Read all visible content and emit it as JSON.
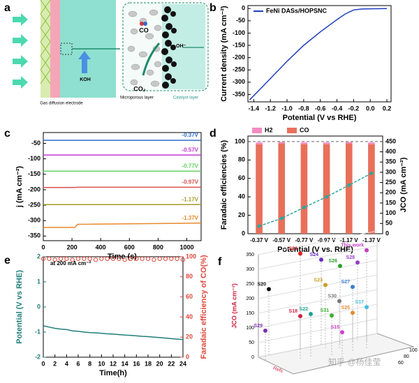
{
  "diagram": {
    "panel": "a",
    "koh": "KOH",
    "gde": "Gas diffusion electrode",
    "mpl": "Microporous layer",
    "cl": "Catalyst layer",
    "co": "CO",
    "co2": "CO₂",
    "oh": "OH⁻"
  },
  "chart_data": [
    {
      "panel": "b",
      "type": "line",
      "xlabel": "Potential (V vs RHE)",
      "ylabel": "Current density (mA cm⁻²)",
      "x": [
        -1.45,
        -1.4,
        -1.2,
        -1.0,
        -0.8,
        -0.6,
        -0.4,
        -0.3,
        -0.2,
        -0.1,
        0,
        0.2
      ],
      "series": [
        {
          "name": "FeNi DASs/HOPSNC",
          "color": "#1f3fbf",
          "values": [
            -372,
            -355,
            -285,
            -215,
            -150,
            -95,
            -45,
            -22,
            -6,
            -2,
            -1,
            0
          ]
        }
      ],
      "xlim": [
        -1.47,
        0.25
      ],
      "xticks": [
        -1.4,
        -1.2,
        {
          "value": -1,
          "label": "-1.0"
        },
        -0.8,
        -0.6,
        -0.4,
        -0.2,
        {
          "value": 0,
          "label": "0.0"
        },
        0.2
      ],
      "ylim": [
        -380,
        12
      ],
      "yticks": [
        -350,
        -300,
        -250,
        -200,
        -150,
        -100,
        -50,
        0
      ],
      "legend": "upper-left"
    },
    {
      "panel": "c",
      "type": "line",
      "xlabel": "Time (s)",
      "ylabel": "j (mA cm⁻²)",
      "x": [
        0,
        220,
        240,
        1100
      ],
      "series": [
        {
          "name": "-0.37V",
          "color": "#2e6fc9",
          "values": [
            -40,
            -40,
            -40,
            -40
          ]
        },
        {
          "name": "-0.57V",
          "color": "#c23bd4",
          "values": [
            -88,
            -88,
            -88,
            -88
          ]
        },
        {
          "name": "-0.77V",
          "color": "#5fd35f",
          "values": [
            -140,
            -140,
            -140,
            -140
          ]
        },
        {
          "name": "-0.97V",
          "color": "#d9534f",
          "values": [
            -193,
            -193,
            -192,
            -192
          ]
        },
        {
          "name": "-1.17V",
          "color": "#a59a2a",
          "values": [
            -248,
            -248,
            -248,
            -248
          ]
        },
        {
          "name": "-1.37V",
          "color": "#e8892c",
          "values": [
            -322,
            -322,
            -312,
            -308
          ]
        }
      ],
      "xlim": [
        0,
        1100
      ],
      "xticks": [
        0,
        200,
        400,
        600,
        800,
        1000
      ],
      "ylim": [
        -365,
        -15
      ],
      "yticks": [
        -50,
        -100,
        -150,
        -200,
        -250,
        -300,
        -350
      ],
      "legend": "line-end"
    },
    {
      "panel": "d",
      "type": "bar",
      "xlabel": "Potential (V vs. RHE)",
      "ylabel": "Faradaic efficiencies (%)",
      "y2label": "JCO (mA cm⁻²)",
      "categories": [
        "-0.37 V",
        "-0.57 V",
        "-0.77 V",
        "-0.97 V",
        "-1.17 V",
        "-1.37 V"
      ],
      "series": [
        {
          "name": "H2",
          "color": "#f28cc1",
          "values": [
            2,
            1.5,
            2,
            2,
            1.5,
            2
          ]
        },
        {
          "name": "CO",
          "color": "#e8705a",
          "values": [
            97,
            98,
            97,
            97,
            98,
            97
          ]
        },
        {
          "type": "line",
          "axis": "y2",
          "color": "#2aa8a0",
          "values": [
            37,
            75,
            128,
            180,
            237,
            295
          ]
        }
      ],
      "stacked": true,
      "reference_line": 100,
      "ylim": [
        0,
        106
      ],
      "yticks": [
        0,
        20,
        40,
        60,
        80,
        100
      ],
      "y2lim": [
        0,
        477
      ],
      "y2ticks": [
        0,
        50,
        100,
        150,
        200,
        250,
        300,
        350,
        400,
        450
      ],
      "legend": "top"
    },
    {
      "panel": "e",
      "type": "line",
      "xlabel": "Time(h)",
      "ylabel": "Potential (V vs RHE)",
      "y2label": "Faradaic efficiency of CO(%)",
      "annotation": "at 200 mA cm⁻²",
      "ycolor": "#1f7f7a",
      "y2color": "#e0473c",
      "x": [
        0,
        1,
        2,
        3,
        4,
        5,
        6,
        7,
        8,
        9,
        10,
        11,
        12,
        13,
        14,
        15,
        16,
        17,
        18,
        19,
        20,
        21,
        22,
        23,
        24
      ],
      "series": [
        {
          "color": "#1f7f7a",
          "values": [
            -0.75,
            -0.8,
            -0.85,
            -0.88,
            -0.9,
            -0.95,
            -0.97,
            -1.0,
            -1.02,
            -1.03,
            -1.05,
            -1.07,
            -1.08,
            -1.1,
            -1.12,
            -1.13,
            -1.15,
            -1.17,
            -1.18,
            -1.2,
            -1.22,
            -1.24,
            -1.26,
            -1.28,
            -1.3
          ]
        },
        {
          "type": "scatter",
          "axis": "y2",
          "color": "#e0473c",
          "values": [
            98,
            98,
            97,
            98,
            98,
            97,
            98,
            98,
            98,
            97,
            98,
            98,
            98,
            98,
            97,
            98,
            98,
            98,
            98,
            97,
            98,
            98,
            98,
            98,
            97
          ]
        }
      ],
      "xlim": [
        0,
        24
      ],
      "xticks": [
        0,
        2,
        4,
        6,
        8,
        10,
        12,
        14,
        16,
        18,
        20,
        22,
        24
      ],
      "ylim": [
        -2,
        2
      ],
      "yticks": [
        -2,
        -1,
        0,
        1,
        2
      ],
      "y2lim": [
        0,
        100
      ],
      "y2ticks": [
        0,
        20,
        40,
        60,
        80,
        100
      ]
    },
    {
      "panel": "f",
      "type": "bar3d",
      "ylabel": "JCO (mA cm⁻²)",
      "xlabel": "Refs",
      "watermark": "知乎 @杨佳莹",
      "categories": [
        "S21",
        "This work",
        "S24",
        "S26",
        "S28",
        "S20",
        "S23",
        "S27",
        "S30",
        "S18",
        "S22",
        "S31",
        "S25",
        "S17",
        "S29",
        "S15"
      ],
      "values": [
        325,
        310,
        290,
        265,
        265,
        225,
        215,
        185,
        160,
        145,
        145,
        135,
        130,
        140,
        100,
        85
      ],
      "colors": [
        "#e02020",
        "#c03cc0",
        "#6a2cc0",
        "#2ca02c",
        "#9b3cc8",
        "#111111",
        "#c8a020",
        "#3a7fd0",
        "#777777",
        "#d02040",
        "#20a090",
        "#3cb030",
        "#e8892c",
        "#40c0e0",
        "#7a30b0",
        "#d040d0"
      ],
      "ylim": [
        0,
        350
      ],
      "yticks": [
        0,
        50,
        100,
        150,
        200,
        250,
        300,
        350
      ],
      "zticks": [
        60,
        80,
        100
      ]
    }
  ]
}
